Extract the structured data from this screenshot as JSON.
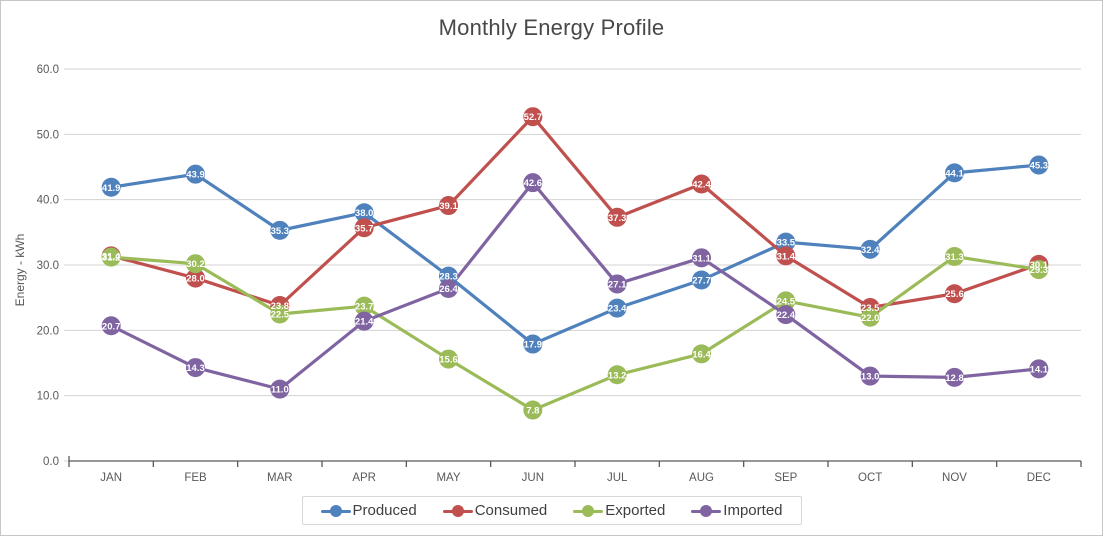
{
  "window": {
    "background": "#ffffff",
    "frame_border": "#c6c6c6"
  },
  "chart_data": {
    "type": "line",
    "title": "Monthly Energy Profile",
    "xlabel": "",
    "ylabel": "Energy - kWh",
    "categories": [
      "JAN",
      "FEB",
      "MAR",
      "APR",
      "MAY",
      "JUN",
      "JUL",
      "AUG",
      "SEP",
      "OCT",
      "NOV",
      "DEC"
    ],
    "series": [
      {
        "name": "Produced",
        "color": "#4F81BD",
        "values": [
          41.9,
          43.9,
          35.3,
          38.0,
          28.3,
          17.9,
          23.4,
          27.7,
          33.5,
          32.4,
          44.1,
          45.3
        ]
      },
      {
        "name": "Consumed",
        "color": "#C0504D",
        "values": [
          31.4,
          28.0,
          23.8,
          35.7,
          39.1,
          52.7,
          37.3,
          42.4,
          31.4,
          23.5,
          25.6,
          30.1
        ]
      },
      {
        "name": "Exported",
        "color": "#9BBB59",
        "values": [
          31.2,
          30.2,
          22.5,
          23.7,
          15.6,
          7.8,
          13.2,
          16.4,
          24.5,
          22.0,
          31.3,
          29.3
        ]
      },
      {
        "name": "Imported",
        "color": "#8064A2",
        "values": [
          20.7,
          14.3,
          11.0,
          21.4,
          26.4,
          42.6,
          27.1,
          31.1,
          22.4,
          13.0,
          12.8,
          14.1
        ]
      }
    ],
    "ylim": [
      0,
      60
    ],
    "ytick_step": 10,
    "ytick_format_decimals": 1,
    "grid": true,
    "data_labels": true,
    "legend_position": "bottom",
    "colors": {
      "gridline": "#d3d3d3",
      "axis_line": "#595959",
      "tick_text": "#595959",
      "title_text": "#484848",
      "data_label_text": "#ffffff"
    }
  }
}
